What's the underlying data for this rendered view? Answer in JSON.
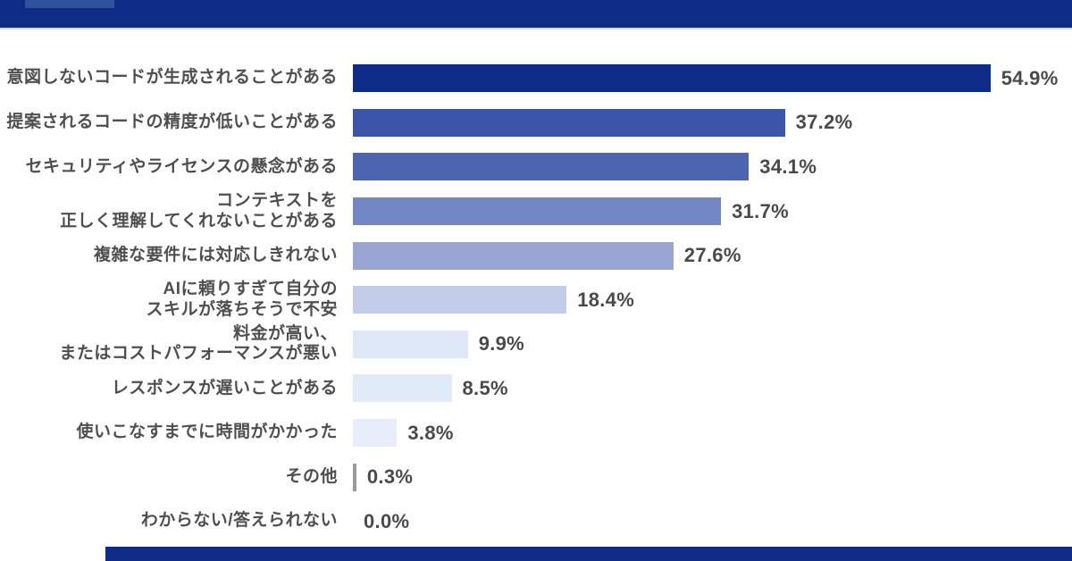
{
  "header": {
    "bar_color": "#0d2b87",
    "accent_rect_color": "#30519e"
  },
  "footer": {
    "bar_color": "#0d2b87"
  },
  "chart_data": {
    "type": "bar",
    "orientation": "horizontal",
    "title": "",
    "xlabel": "",
    "ylabel": "",
    "unit": "%",
    "xlim": [
      0,
      60
    ],
    "grid": false,
    "legend": false,
    "categories": [
      "意図しないコードが生成されることがある",
      "提案されるコードの精度が低いことがある",
      "セキュリティやライセンスの懸念がある",
      "コンテキストを\n正しく理解してくれないことがある",
      "複雑な要件には対応しきれない",
      "AIに頼りすぎて自分の\nスキルが落ちそうで不安",
      "料金が高い、\nまたはコストパフォーマンスが悪い",
      "レスポンスが遅いことがある",
      "使いこなすまでに時間がかかった",
      "その他",
      "わからない/答えられない"
    ],
    "values": [
      54.9,
      37.2,
      34.1,
      31.7,
      27.6,
      18.4,
      9.9,
      8.5,
      3.8,
      0.3,
      0.0
    ],
    "value_labels": [
      "54.9%",
      "37.2%",
      "34.1%",
      "31.7%",
      "27.6%",
      "18.4%",
      "9.9%",
      "8.5%",
      "3.8%",
      "0.3%",
      "0.0%"
    ],
    "bar_colors": [
      "#0d2b87",
      "#3b56a8",
      "#4d64b1",
      "#7487c5",
      "#99a6d3",
      "#c3cdea",
      "#dfe8f7",
      "#e1eaf8",
      "#e7eef9",
      "#9b9b9b",
      "#ffffff"
    ]
  }
}
